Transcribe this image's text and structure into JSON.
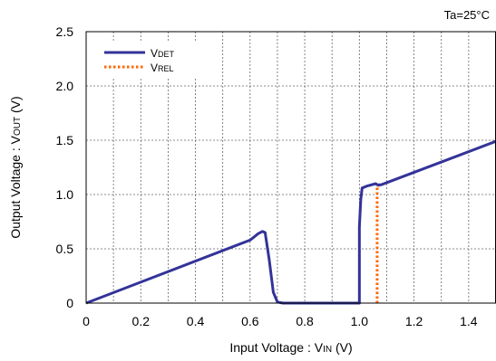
{
  "chart_data": {
    "type": "line",
    "annotation": "Ta=25°C",
    "xlabel": {
      "prefix": "Input Voltage : V",
      "sub": "IN",
      "suffix": " (V)"
    },
    "ylabel": {
      "prefix": "Output Voltage : V",
      "sub": "OUT",
      "suffix": " (V)"
    },
    "xlim": [
      0,
      1.5
    ],
    "ylim": [
      0,
      2.5
    ],
    "xticks": [
      0,
      0.2,
      0.4,
      0.6,
      0.8,
      1.0,
      1.2,
      1.4
    ],
    "xtick_labels": [
      "0",
      "0.2",
      "0.4",
      "0.6",
      "0.8",
      "1.0",
      "1.2",
      "1.4"
    ],
    "yticks": [
      0,
      0.5,
      1.0,
      1.5,
      2.0,
      2.5
    ],
    "ytick_labels": [
      "0",
      "0.5",
      "1.0",
      "1.5",
      "2.0",
      "2.5"
    ],
    "x_minor_grid": [
      0.1,
      0.3,
      0.5,
      0.7,
      0.9,
      1.1,
      1.3
    ],
    "grid": true,
    "legend_position": "top-left",
    "series": [
      {
        "name": "V",
        "name_sub": "DET",
        "color": "#333399",
        "style": "solid",
        "points": [
          [
            0,
            0
          ],
          [
            0.6,
            0.58
          ],
          [
            0.63,
            0.64
          ],
          [
            0.645,
            0.66
          ],
          [
            0.655,
            0.65
          ],
          [
            0.67,
            0.4
          ],
          [
            0.685,
            0.1
          ],
          [
            0.7,
            0.01
          ],
          [
            0.72,
            0
          ],
          [
            1.0,
            0
          ],
          [
            1.0,
            0.7
          ],
          [
            1.005,
            0.95
          ],
          [
            1.01,
            1.06
          ],
          [
            1.03,
            1.08
          ],
          [
            1.06,
            1.1
          ],
          [
            1.065,
            1.09
          ],
          [
            1.08,
            1.09
          ],
          [
            1.5,
            1.49
          ]
        ]
      },
      {
        "name": "V",
        "name_sub": "REL",
        "color": "#ff6600",
        "style": "dotted",
        "points": [
          [
            1.065,
            0
          ],
          [
            1.065,
            1.08
          ],
          [
            1.08,
            1.09
          ]
        ]
      }
    ]
  }
}
